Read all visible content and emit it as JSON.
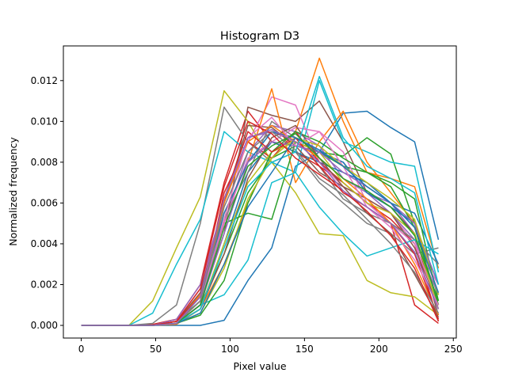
{
  "chart_data": {
    "type": "line",
    "title": "Histogram D3",
    "xlabel": "Pixel value",
    "ylabel": "Normalized frequency",
    "xlim": [
      -12,
      252
    ],
    "ylim": [
      -0.00062,
      0.0137
    ],
    "xticks": [
      0,
      50,
      100,
      150,
      200,
      250
    ],
    "yticks": [
      0.0,
      0.002,
      0.004,
      0.006,
      0.008,
      0.01,
      0.012
    ],
    "ytick_labels": [
      "0.000",
      "0.002",
      "0.004",
      "0.006",
      "0.008",
      "0.010",
      "0.012"
    ],
    "grid": false,
    "legend": "none",
    "x": [
      0,
      16,
      32,
      48,
      64,
      80,
      96,
      112,
      128,
      144,
      160,
      176,
      192,
      208,
      224,
      240
    ],
    "series": [
      {
        "color": "#1f77b4",
        "values": [
          0,
          0,
          0,
          0,
          0,
          0,
          0.00025,
          0.0022,
          0.0038,
          0.0078,
          0.0085,
          0.0104,
          0.0105,
          0.0097,
          0.009,
          0.0042
        ]
      },
      {
        "color": "#ff7f0e",
        "values": [
          0,
          0,
          0,
          0,
          5e-05,
          0.0008,
          0.003,
          0.006,
          0.0085,
          0.0095,
          0.0131,
          0.01,
          0.0075,
          0.0072,
          0.0068,
          0.0028
        ]
      },
      {
        "color": "#2ca02c",
        "values": [
          0,
          0,
          0,
          0,
          0.0001,
          0.001,
          0.0035,
          0.0065,
          0.0082,
          0.0088,
          0.0085,
          0.0083,
          0.0092,
          0.0084,
          0.005,
          0.001
        ]
      },
      {
        "color": "#d62728",
        "values": [
          0,
          0,
          0,
          5e-05,
          0.0003,
          0.002,
          0.007,
          0.0105,
          0.009,
          0.0085,
          0.0078,
          0.007,
          0.006,
          0.005,
          0.001,
          0.0001
        ]
      },
      {
        "color": "#9467bd",
        "values": [
          0,
          0,
          0,
          0,
          0.0002,
          0.0015,
          0.005,
          0.0085,
          0.0098,
          0.0095,
          0.0088,
          0.0072,
          0.0065,
          0.006,
          0.0045,
          0.0008
        ]
      },
      {
        "color": "#8c564b",
        "values": [
          0,
          0,
          0,
          0,
          0.0001,
          0.0012,
          0.0045,
          0.0107,
          0.0103,
          0.01,
          0.011,
          0.009,
          0.0065,
          0.0058,
          0.0045,
          0.0005
        ]
      },
      {
        "color": "#e377c2",
        "values": [
          0,
          0,
          0,
          0,
          0.0002,
          0.0018,
          0.006,
          0.009,
          0.0112,
          0.0108,
          0.008,
          0.0068,
          0.0062,
          0.0055,
          0.004,
          0.002
        ]
      },
      {
        "color": "#7f7f7f",
        "values": [
          0,
          0,
          0,
          0.0001,
          0.001,
          0.005,
          0.0107,
          0.009,
          0.008,
          0.0085,
          0.007,
          0.006,
          0.005,
          0.0045,
          0.0035,
          0.0038
        ]
      },
      {
        "color": "#bcbd22",
        "values": [
          0,
          0,
          0,
          0.0012,
          0.0038,
          0.0063,
          0.0115,
          0.01,
          0.008,
          0.0065,
          0.0045,
          0.0044,
          0.0022,
          0.0016,
          0.0014,
          0.0005
        ]
      },
      {
        "color": "#17becf",
        "values": [
          0,
          0,
          0,
          0.0006,
          0.003,
          0.0052,
          0.0095,
          0.0085,
          0.008,
          0.0075,
          0.012,
          0.009,
          0.0085,
          0.008,
          0.0078,
          0.0026
        ]
      },
      {
        "color": "#1f77b4",
        "values": [
          0,
          0,
          0,
          0,
          0.0001,
          0.0008,
          0.004,
          0.0075,
          0.009,
          0.0085,
          0.008,
          0.0075,
          0.007,
          0.006,
          0.0055,
          0.003
        ]
      },
      {
        "color": "#ff7f0e",
        "values": [
          0,
          0,
          0,
          0,
          0.0002,
          0.0015,
          0.0055,
          0.008,
          0.0116,
          0.007,
          0.009,
          0.0105,
          0.008,
          0.0065,
          0.005,
          0.0015
        ]
      },
      {
        "color": "#2ca02c",
        "values": [
          0,
          0,
          0,
          0,
          0.0002,
          0.0012,
          0.005,
          0.0055,
          0.0052,
          0.009,
          0.0085,
          0.0078,
          0.0075,
          0.007,
          0.0062,
          0.0012
        ]
      },
      {
        "color": "#d62728",
        "values": [
          0,
          0,
          0,
          0,
          0.0001,
          0.001,
          0.0065,
          0.009,
          0.0082,
          0.0095,
          0.008,
          0.007,
          0.006,
          0.0052,
          0.004,
          0.0002
        ]
      },
      {
        "color": "#9467bd",
        "values": [
          0,
          0,
          0,
          0,
          0.0003,
          0.002,
          0.006,
          0.0092,
          0.0095,
          0.009,
          0.0085,
          0.008,
          0.0065,
          0.0055,
          0.0042,
          0.0015
        ]
      },
      {
        "color": "#8c564b",
        "values": [
          0,
          0,
          0,
          0,
          0.0002,
          0.0016,
          0.006,
          0.0098,
          0.0097,
          0.0088,
          0.0075,
          0.0068,
          0.0062,
          0.0055,
          0.0038,
          0.001
        ]
      },
      {
        "color": "#e377c2",
        "values": [
          0,
          0,
          0,
          0,
          0.0001,
          0.0012,
          0.005,
          0.0082,
          0.009,
          0.0097,
          0.0095,
          0.0085,
          0.006,
          0.005,
          0.004,
          0.001
        ]
      },
      {
        "color": "#7f7f7f",
        "values": [
          0,
          0,
          0,
          0,
          0.0001,
          0.001,
          0.0052,
          0.0075,
          0.01,
          0.0092,
          0.0078,
          0.0062,
          0.0055,
          0.005,
          0.0042,
          0.003
        ]
      },
      {
        "color": "#bcbd22",
        "values": [
          0,
          0,
          0,
          0,
          0.0001,
          0.0008,
          0.004,
          0.007,
          0.0085,
          0.009,
          0.0085,
          0.007,
          0.006,
          0.0055,
          0.0045,
          0.0008
        ]
      },
      {
        "color": "#17becf",
        "values": [
          0,
          0,
          0,
          0,
          0.0001,
          0.001,
          0.0015,
          0.0032,
          0.007,
          0.0075,
          0.0058,
          0.0045,
          0.0034,
          0.0038,
          0.0042,
          0.0035
        ]
      },
      {
        "color": "#1f77b4",
        "values": [
          0,
          0,
          0,
          0,
          0.0001,
          0.001,
          0.0055,
          0.008,
          0.0095,
          0.0092,
          0.0085,
          0.008,
          0.0065,
          0.0058,
          0.005,
          0.002
        ]
      },
      {
        "color": "#ff7f0e",
        "values": [
          0,
          0,
          0,
          0,
          0.0001,
          0.0012,
          0.006,
          0.009,
          0.0098,
          0.009,
          0.0082,
          0.0072,
          0.0062,
          0.005,
          0.003,
          0.0005
        ]
      },
      {
        "color": "#2ca02c",
        "values": [
          0,
          0,
          0,
          0,
          0.0001,
          0.0005,
          0.0022,
          0.006,
          0.0085,
          0.0095,
          0.009,
          0.0082,
          0.0075,
          0.0068,
          0.0048,
          0.001
        ]
      },
      {
        "color": "#d62728",
        "values": [
          0,
          0,
          0,
          0,
          0.0002,
          0.0014,
          0.0062,
          0.0095,
          0.0085,
          0.0092,
          0.0078,
          0.0065,
          0.0058,
          0.005,
          0.0035,
          0.0003
        ]
      },
      {
        "color": "#9467bd",
        "values": [
          0,
          0,
          0,
          0,
          0.0001,
          0.001,
          0.0045,
          0.008,
          0.009,
          0.0088,
          0.0085,
          0.0075,
          0.0068,
          0.006,
          0.005,
          0.002
        ]
      },
      {
        "color": "#8c564b",
        "values": [
          0,
          0,
          0,
          0,
          0.0001,
          0.0008,
          0.0035,
          0.0072,
          0.0092,
          0.0098,
          0.0082,
          0.0068,
          0.0055,
          0.0045,
          0.0025,
          0.0004
        ]
      },
      {
        "color": "#e377c2",
        "values": [
          0,
          0,
          0,
          0,
          0.0001,
          0.0012,
          0.0052,
          0.0092,
          0.0102,
          0.0088,
          0.0095,
          0.0078,
          0.0058,
          0.0048,
          0.0032,
          0.001
        ]
      },
      {
        "color": "#7f7f7f",
        "values": [
          0,
          0,
          0,
          0,
          0.0001,
          0.0012,
          0.0058,
          0.0085,
          0.0095,
          0.0086,
          0.0072,
          0.0064,
          0.0052,
          0.004,
          0.0026,
          0.0006
        ]
      },
      {
        "color": "#bcbd22",
        "values": [
          0,
          0,
          0,
          0,
          0.0001,
          0.0006,
          0.0028,
          0.0062,
          0.0082,
          0.0092,
          0.0088,
          0.0078,
          0.007,
          0.0062,
          0.0052,
          0.0015
        ]
      },
      {
        "color": "#17becf",
        "values": [
          0,
          0,
          0,
          0,
          0.0001,
          0.0008,
          0.0038,
          0.0068,
          0.008,
          0.0085,
          0.0122,
          0.0092,
          0.0078,
          0.0072,
          0.0065,
          0.002
        ]
      },
      {
        "color": "#1f77b4",
        "values": [
          0,
          0,
          0,
          0,
          0.0001,
          0.0006,
          0.003,
          0.0058,
          0.0075,
          0.0092,
          0.0086,
          0.0078,
          0.0068,
          0.006,
          0.0048,
          0.0016
        ]
      },
      {
        "color": "#d62728",
        "values": [
          0,
          0,
          0,
          0,
          0.0002,
          0.0018,
          0.0068,
          0.01,
          0.0094,
          0.0082,
          0.0074,
          0.0066,
          0.0056,
          0.0044,
          0.0028,
          0.0002
        ]
      },
      {
        "color": "#2ca02c",
        "values": [
          0,
          0,
          0,
          0,
          0.0001,
          0.001,
          0.0048,
          0.0078,
          0.0088,
          0.0094,
          0.0082,
          0.0072,
          0.0066,
          0.0058,
          0.0044,
          0.0012
        ]
      },
      {
        "color": "#9467bd",
        "values": [
          0,
          0,
          0,
          0,
          0.0001,
          0.0014,
          0.0062,
          0.0092,
          0.0096,
          0.009,
          0.008,
          0.0066,
          0.0058,
          0.005,
          0.0036,
          0.0008
        ]
      }
    ]
  }
}
